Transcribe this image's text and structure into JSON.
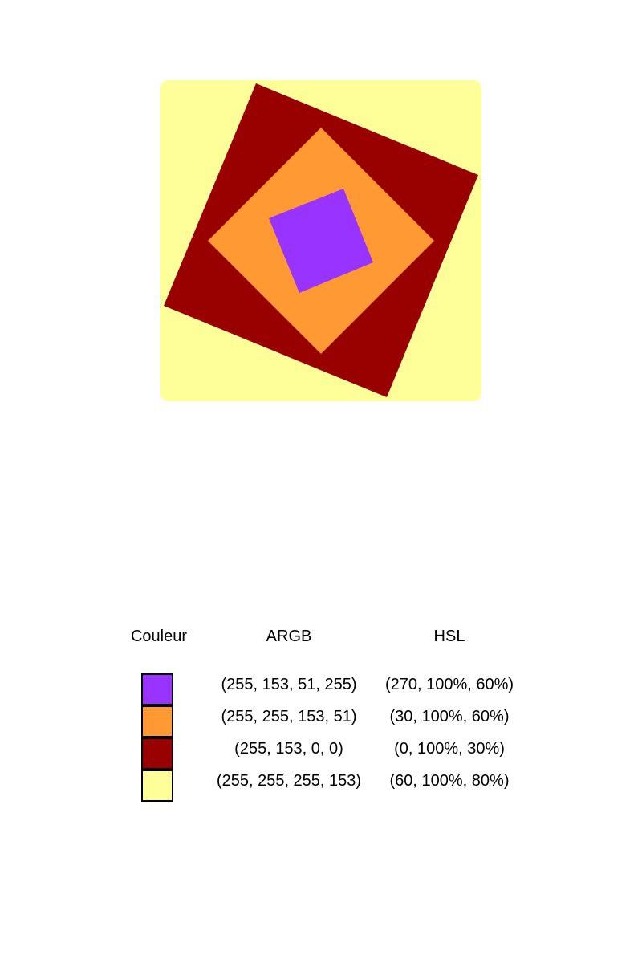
{
  "diagram": {
    "background_color": "#FFFF99",
    "squares": [
      {
        "name": "dark-red-square",
        "color": "#990000"
      },
      {
        "name": "orange-square",
        "color": "#FF9933"
      },
      {
        "name": "purple-square",
        "color": "#9933FF"
      }
    ]
  },
  "legend": {
    "headers": {
      "color": "Couleur",
      "argb": "ARGB",
      "hsl": "HSL"
    },
    "rows": [
      {
        "swatch": "#9933FF",
        "argb": "(255, 153, 51, 255)",
        "hsl": "(270, 100%, 60%)"
      },
      {
        "swatch": "#FF9933",
        "argb": "(255, 255, 153, 51)",
        "hsl": "(30, 100%, 60%)"
      },
      {
        "swatch": "#990000",
        "argb": "(255, 153, 0, 0)",
        "hsl": "(0, 100%, 30%)"
      },
      {
        "swatch": "#FFFF99",
        "argb": "(255, 255, 255, 153)",
        "hsl": "(60, 100%, 80%)"
      }
    ]
  }
}
